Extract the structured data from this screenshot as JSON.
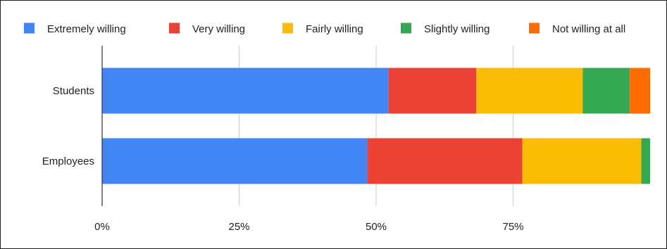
{
  "chart_data": {
    "type": "bar",
    "orientation": "horizontal",
    "stacked": "percent",
    "categories": [
      "Students",
      "Employees"
    ],
    "series": [
      {
        "name": "Extremely willing",
        "color": "#4285f4",
        "values": [
          52.3,
          48.4
        ]
      },
      {
        "name": "Very willing",
        "color": "#ea4335",
        "values": [
          16.0,
          28.3
        ]
      },
      {
        "name": "Fairly willing",
        "color": "#fbbc04",
        "values": [
          19.4,
          21.7
        ]
      },
      {
        "name": "Slightly willing",
        "color": "#34a853",
        "values": [
          8.6,
          1.6
        ]
      },
      {
        "name": "Not willing at all",
        "color": "#ff6d01",
        "values": [
          3.7,
          0.0
        ]
      }
    ],
    "xticks": [
      "0%",
      "25%",
      "50%",
      "75%"
    ],
    "xlim": [
      0,
      100
    ],
    "grid": true,
    "legend": "top",
    "title": "",
    "xlabel": "",
    "ylabel": ""
  }
}
